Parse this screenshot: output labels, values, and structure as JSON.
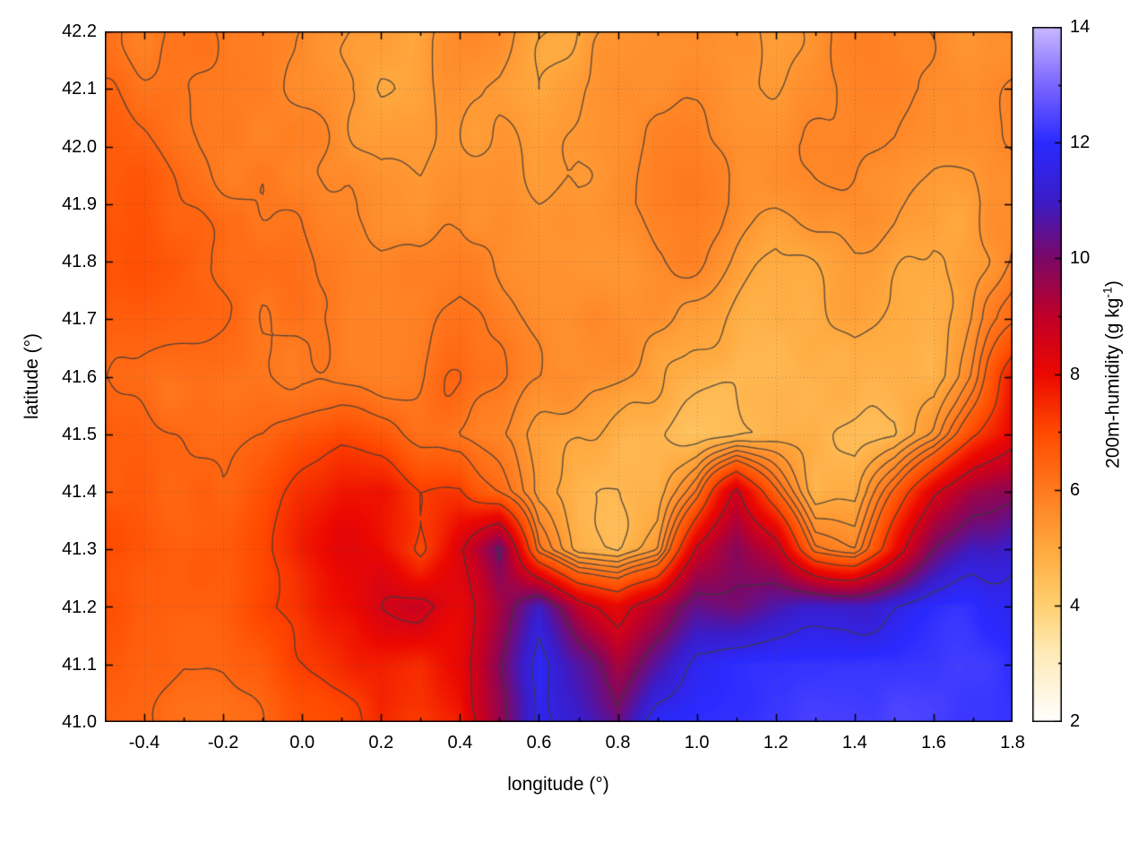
{
  "figure": {
    "bg": "#ffffff"
  },
  "chart_data": {
    "type": "heatmap",
    "title": "",
    "xlabel": "longitude (°)",
    "ylabel": "latitude (°)",
    "colorbar_label": {
      "pre": "200m-humidity (g kg",
      "sup": "-1",
      "post": ")"
    },
    "x_range": [
      -0.5,
      1.8
    ],
    "y_range": [
      41.0,
      42.2
    ],
    "grid_on": true,
    "legend_position": "colorbar-right",
    "x_ticks": [
      {
        "v": -0.4,
        "label": "-0.4"
      },
      {
        "v": -0.2,
        "label": "-0.2"
      },
      {
        "v": 0.0,
        "label": "0.0"
      },
      {
        "v": 0.2,
        "label": "0.2"
      },
      {
        "v": 0.4,
        "label": "0.4"
      },
      {
        "v": 0.6,
        "label": "0.6"
      },
      {
        "v": 0.8,
        "label": "0.8"
      },
      {
        "v": 1.0,
        "label": "1.0"
      },
      {
        "v": 1.2,
        "label": "1.2"
      },
      {
        "v": 1.4,
        "label": "1.4"
      },
      {
        "v": 1.6,
        "label": "1.6"
      },
      {
        "v": 1.8,
        "label": "1.8"
      }
    ],
    "y_ticks": [
      {
        "v": 41.0,
        "label": "41.0"
      },
      {
        "v": 41.1,
        "label": "41.1"
      },
      {
        "v": 41.2,
        "label": "41.2"
      },
      {
        "v": 41.3,
        "label": "41.3"
      },
      {
        "v": 41.4,
        "label": "41.4"
      },
      {
        "v": 41.5,
        "label": "41.5"
      },
      {
        "v": 41.6,
        "label": "41.6"
      },
      {
        "v": 41.7,
        "label": "41.7"
      },
      {
        "v": 41.8,
        "label": "41.8"
      },
      {
        "v": 41.9,
        "label": "41.9"
      },
      {
        "v": 42.0,
        "label": "42.0"
      },
      {
        "v": 42.1,
        "label": "42.1"
      },
      {
        "v": 42.2,
        "label": "42.2"
      }
    ],
    "colorbar": {
      "min": 2,
      "max": 14,
      "ticks": [
        {
          "v": 2,
          "label": "2"
        },
        {
          "v": 4,
          "label": "4"
        },
        {
          "v": 6,
          "label": "6"
        },
        {
          "v": 8,
          "label": "8"
        },
        {
          "v": 10,
          "label": "10"
        },
        {
          "v": 12,
          "label": "12"
        },
        {
          "v": 14,
          "label": "14"
        }
      ],
      "stops": [
        [
          2.0,
          "#ffffff"
        ],
        [
          3.2,
          "#ffeab8"
        ],
        [
          4.0,
          "#ffd070"
        ],
        [
          5.0,
          "#ffa83e"
        ],
        [
          6.0,
          "#ff7a1e"
        ],
        [
          7.0,
          "#ff4a00"
        ],
        [
          8.0,
          "#ec0800"
        ],
        [
          9.0,
          "#c00028"
        ],
        [
          10.0,
          "#7c0866"
        ],
        [
          11.0,
          "#3b1cc8"
        ],
        [
          12.0,
          "#2a2aff"
        ],
        [
          13.0,
          "#7a66ff"
        ],
        [
          14.0,
          "#c9b8ff"
        ]
      ]
    },
    "grid": {
      "lon0": -0.5,
      "dlon": 0.1,
      "lat0": 42.2,
      "dlat": 0.1,
      "values": [
        [
          6.2,
          6.0,
          5.9,
          5.8,
          5.8,
          5.7,
          5.6,
          5.4,
          5.2,
          5.4,
          5.6,
          5.3,
          5.1,
          5.4,
          5.6,
          5.7,
          5.5,
          5.3,
          5.6,
          5.8,
          5.9,
          5.7,
          5.6,
          5.8
        ],
        [
          6.3,
          6.1,
          6.0,
          5.9,
          5.8,
          5.6,
          5.4,
          5.2,
          5.3,
          5.5,
          5.4,
          5.1,
          5.3,
          5.5,
          5.6,
          5.5,
          5.3,
          5.5,
          5.7,
          5.9,
          6.0,
          5.8,
          5.6,
          5.7
        ],
        [
          6.5,
          6.3,
          6.1,
          6.0,
          5.9,
          5.7,
          5.5,
          5.3,
          5.4,
          5.6,
          5.5,
          5.3,
          5.4,
          5.6,
          5.7,
          5.6,
          5.5,
          5.6,
          5.8,
          6.0,
          5.9,
          5.7,
          5.5,
          5.6
        ],
        [
          6.6,
          6.5,
          6.3,
          6.1,
          6.0,
          5.9,
          5.7,
          5.6,
          5.5,
          5.8,
          5.7,
          5.5,
          5.5,
          5.7,
          5.8,
          5.7,
          5.5,
          5.5,
          5.7,
          5.8,
          5.7,
          5.4,
          5.3,
          5.5
        ],
        [
          6.8,
          6.6,
          6.5,
          6.3,
          6.1,
          6.0,
          5.9,
          5.7,
          5.8,
          6.0,
          5.9,
          5.7,
          5.6,
          5.6,
          5.6,
          5.5,
          5.3,
          5.1,
          5.3,
          5.5,
          5.4,
          5.1,
          5.3,
          5.6
        ],
        [
          6.7,
          6.6,
          6.4,
          6.3,
          6.1,
          6.1,
          6.0,
          5.9,
          5.9,
          6.1,
          6.0,
          5.8,
          5.7,
          5.5,
          5.3,
          5.1,
          4.9,
          4.8,
          5.0,
          5.2,
          5.0,
          4.9,
          5.4,
          6.2
        ],
        [
          6.6,
          6.4,
          6.3,
          6.1,
          6.1,
          6.2,
          6.1,
          6.0,
          6.0,
          6.2,
          6.0,
          5.8,
          5.5,
          5.2,
          4.9,
          4.7,
          4.5,
          4.5,
          4.7,
          4.9,
          4.7,
          4.6,
          5.8,
          7.8
        ],
        [
          6.9,
          6.6,
          6.4,
          6.2,
          6.3,
          6.6,
          6.9,
          6.7,
          6.3,
          6.0,
          5.6,
          5.2,
          4.9,
          4.7,
          4.5,
          4.4,
          4.5,
          4.6,
          4.7,
          4.5,
          4.4,
          5.2,
          7.0,
          8.2
        ],
        [
          6.9,
          6.6,
          6.4,
          6.3,
          6.6,
          7.2,
          7.7,
          7.8,
          7.4,
          7.6,
          6.4,
          5.0,
          4.5,
          4.4,
          4.7,
          6.2,
          8.8,
          6.8,
          4.8,
          4.7,
          6.4,
          8.2,
          9.4,
          10.0
        ],
        [
          7.0,
          6.8,
          6.6,
          6.6,
          6.9,
          7.6,
          8.1,
          7.9,
          7.0,
          8.6,
          10.2,
          6.0,
          4.7,
          4.5,
          5.4,
          8.6,
          9.8,
          8.8,
          6.2,
          5.8,
          7.8,
          9.8,
          11.0,
          11.3
        ],
        [
          6.9,
          6.6,
          6.6,
          6.6,
          7.1,
          7.5,
          7.9,
          8.3,
          8.8,
          8.4,
          9.4,
          10.8,
          8.8,
          8.0,
          9.2,
          10.2,
          10.0,
          10.6,
          11.0,
          11.2,
          11.4,
          11.8,
          12.0,
          12.0
        ],
        [
          6.6,
          6.5,
          6.4,
          6.5,
          6.8,
          7.1,
          7.4,
          7.8,
          7.6,
          8.2,
          9.8,
          11.8,
          10.6,
          9.2,
          10.4,
          11.6,
          12.0,
          12.1,
          12.1,
          12.1,
          12.1,
          12.1,
          12.2,
          12.2
        ],
        [
          6.5,
          6.4,
          6.3,
          6.4,
          6.6,
          6.9,
          7.2,
          7.6,
          7.2,
          7.4,
          9.6,
          12.0,
          11.2,
          10.2,
          12.0,
          12.2,
          12.2,
          12.2,
          12.2,
          12.2,
          12.2,
          12.2,
          12.2,
          12.2
        ]
      ]
    },
    "contour_levels": [
      4.6,
      5.0,
      5.35,
      5.7,
      6.05,
      6.4,
      7.2,
      8.5,
      10.0,
      11.5
    ],
    "contour_color": "#3a3a3a",
    "noise": {
      "amp": 0.4,
      "freq": 5.0
    }
  }
}
